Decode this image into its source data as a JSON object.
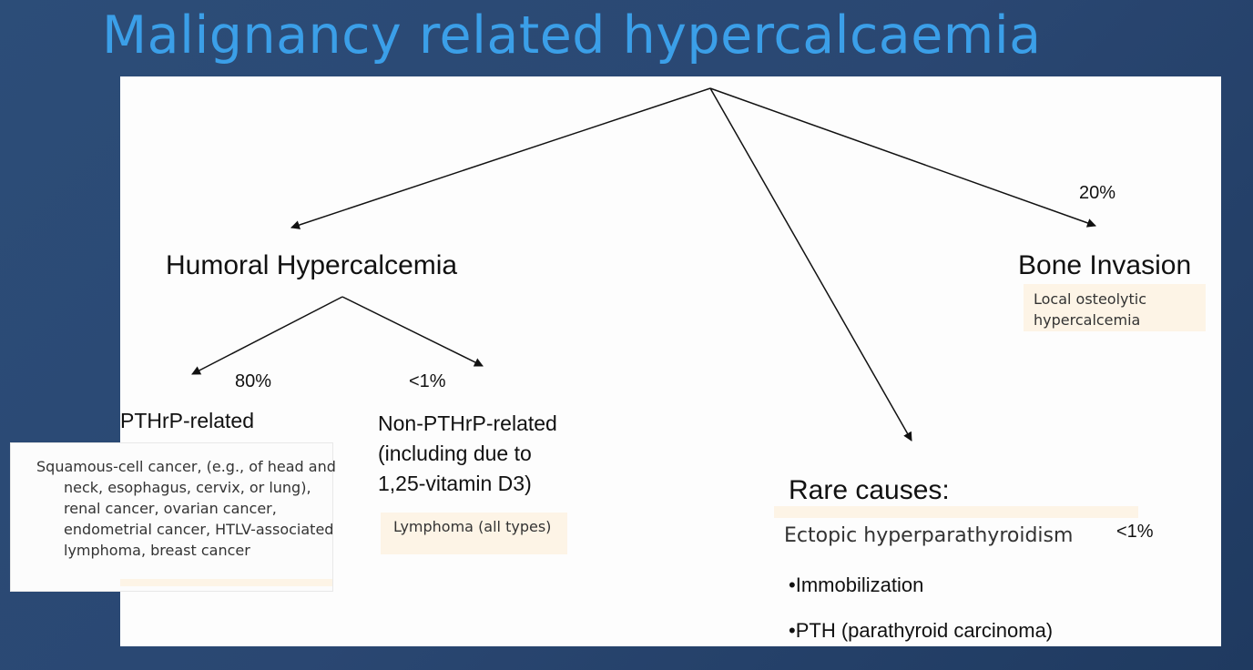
{
  "slide": {
    "title": "Malignancy related hypercalcaemia"
  },
  "diagram": {
    "humoral": {
      "label": "Humoral Hypercalcemia"
    },
    "bone": {
      "label": "Bone Invasion",
      "percent": "20%",
      "note": "Local osteolytic\nhypercalcemia"
    },
    "pthrp": {
      "label": "PTHrP-related",
      "percent": "80%",
      "examples": "Squamous-cell cancer, (e.g., of head and neck, esophagus, cervix, or lung), renal cancer, ovarian cancer, endometrial cancer, HTLV-associated lymphoma, breast cancer"
    },
    "non_pthrp": {
      "label": "Non-PTHrP-related\n(including due to\n1,25-vitamin D3)",
      "percent": "<1%",
      "note": "Lymphoma (all types)"
    },
    "rare": {
      "label": "Rare causes:",
      "ectopic": "Ectopic hyperparathyroidism",
      "ectopic_percent": "<1%",
      "items": [
        "•Immobilization",
        "•PTH (parathyroid carcinoma)"
      ]
    }
  }
}
